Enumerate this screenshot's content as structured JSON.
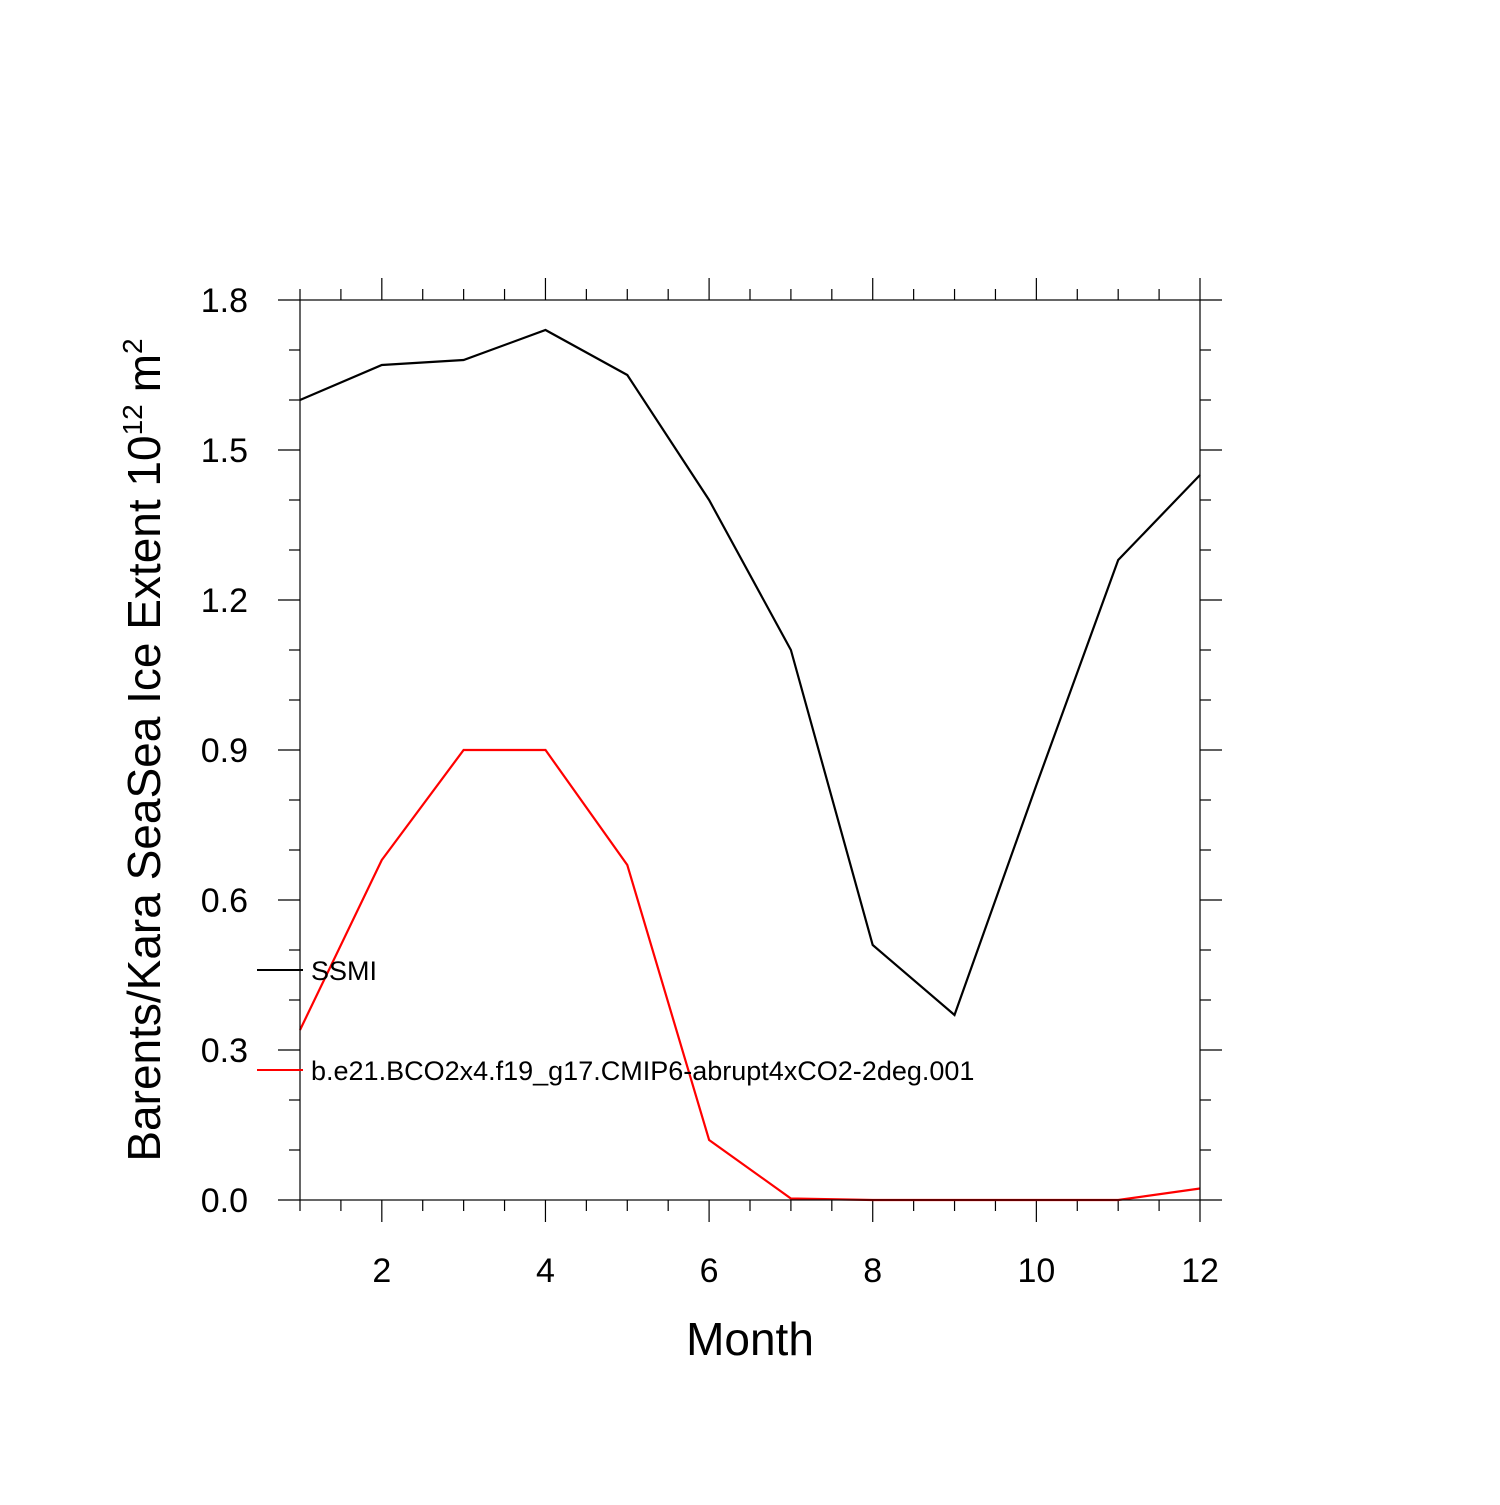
{
  "chart_data": {
    "type": "line",
    "xlabel": "Month",
    "ylabel": "Barents/Kara SeaSea Ice Extent 10",
    "ylabel_superscript": "12",
    "ylabel_unit": "m",
    "ylabel_unit_superscript": "2",
    "xlim": [
      1,
      12
    ],
    "ylim": [
      0,
      1.8
    ],
    "x_ticks": [
      2,
      4,
      6,
      8,
      10,
      12
    ],
    "x_tick_labels": [
      "2",
      "4",
      "6",
      "8",
      "10",
      "12"
    ],
    "y_ticks": [
      0,
      0.3,
      0.6,
      0.9,
      1.2,
      1.5,
      1.8
    ],
    "y_tick_labels": [
      "0.0",
      "0.3",
      "0.6",
      "0.9",
      "1.2",
      "1.5",
      "1.8"
    ],
    "x_minor_step": 0.5,
    "y_minor_step": 0.1,
    "grid": false,
    "legend_position": "left-center",
    "x": [
      1,
      2,
      3,
      4,
      5,
      6,
      7,
      8,
      9,
      10,
      11,
      12
    ],
    "series": [
      {
        "name": "SSMI",
        "color": "#000000",
        "values": [
          1.6,
          1.67,
          1.68,
          1.74,
          1.65,
          1.4,
          1.1,
          0.51,
          0.37,
          0.83,
          1.28,
          1.45
        ]
      },
      {
        "name": "b.e21.BCO2x4.f19_g17.CMIP6-abrupt4xCO2-2deg.001",
        "color": "#ff0000",
        "values": [
          0.34,
          0.68,
          0.9,
          0.9,
          0.67,
          0.12,
          0.003,
          0.0,
          0.0,
          0.0,
          0.0,
          0.023
        ]
      }
    ]
  }
}
